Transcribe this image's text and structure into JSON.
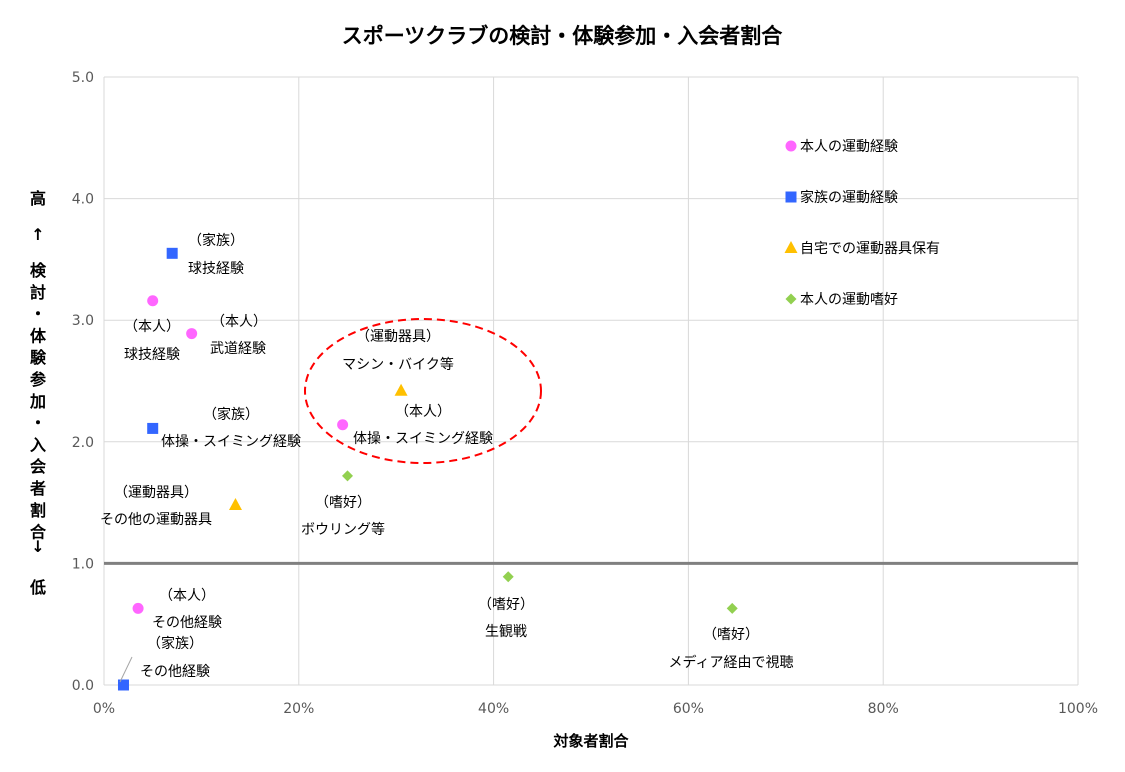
{
  "chart_data": {
    "type": "scatter",
    "title": "スポーツクラブの検討・体験参加・入会者割合",
    "xlabel": "対象者割合",
    "ylabel_top": "高",
    "ylabel_up_arrow": "↑",
    "ylabel": "検討・体験参加・入会者割合",
    "ylabel_down_arrow": "↓",
    "ylabel_bottom": "低",
    "xlim": [
      0,
      100
    ],
    "ylim": [
      0,
      5.0
    ],
    "x_unit": "%",
    "x_ticks": [
      "0%",
      "20%",
      "40%",
      "60%",
      "80%",
      "100%"
    ],
    "y_ticks": [
      "0.0",
      "1.0",
      "2.0",
      "3.0",
      "4.0",
      "5.0"
    ],
    "reference_line_y": 1.0,
    "grid": true,
    "legend_position": "top-right",
    "series": [
      {
        "name": "本人の運動経験",
        "marker": "circle",
        "color": "#FF66FF",
        "points": [
          {
            "x": 5.0,
            "y": 3.16
          },
          {
            "x": 9.0,
            "y": 2.89,
            "label": [
              "（本人）",
              "武道経験"
            ]
          },
          {
            "x": 24.5,
            "y": 2.14,
            "label": [
              "（本人）",
              "体操・スイミング経験"
            ]
          },
          {
            "x": 3.5,
            "y": 0.63,
            "label": [
              "（本人）",
              "その他経験"
            ]
          }
        ]
      },
      {
        "name": "家族の運動経験",
        "marker": "square",
        "color": "#3366FF",
        "points": [
          {
            "x": 7.0,
            "y": 3.55,
            "label": [
              "（家族）",
              "球技経験"
            ]
          },
          {
            "x": 5.0,
            "y": 2.11,
            "label": [
              "（家族）",
              "体操・スイミング経験"
            ]
          },
          {
            "x": 2.0,
            "y": 0.0,
            "label": [
              "（家族）",
              "その他経験"
            ]
          }
        ]
      },
      {
        "name": "自宅での運動器具保有",
        "marker": "triangle",
        "color": "#FFC000",
        "points": [
          {
            "x": 30.5,
            "y": 2.42,
            "label": [
              "（運動器具）",
              "マシン・バイク等"
            ]
          },
          {
            "x": 13.5,
            "y": 1.48,
            "label": [
              "（運動器具）",
              "その他の運動器具"
            ]
          }
        ]
      },
      {
        "name": "本人の運動嗜好",
        "marker": "diamond",
        "color": "#92D050",
        "points": [
          {
            "x": 25.0,
            "y": 1.72,
            "label": [
              "（嗜好）",
              "ボウリング等"
            ]
          },
          {
            "x": 41.5,
            "y": 0.89,
            "label": [
              "（嗜好）",
              "生観戦"
            ]
          },
          {
            "x": 64.5,
            "y": 0.63,
            "label": [
              "（嗜好）",
              "メディア経由で視聴"
            ]
          }
        ]
      }
    ],
    "extra_labels": [
      {
        "lines": [
          "（本人）",
          "球技経験"
        ]
      }
    ],
    "highlight": {
      "shape": "dashed-ellipse",
      "color": "#FF0000"
    }
  }
}
